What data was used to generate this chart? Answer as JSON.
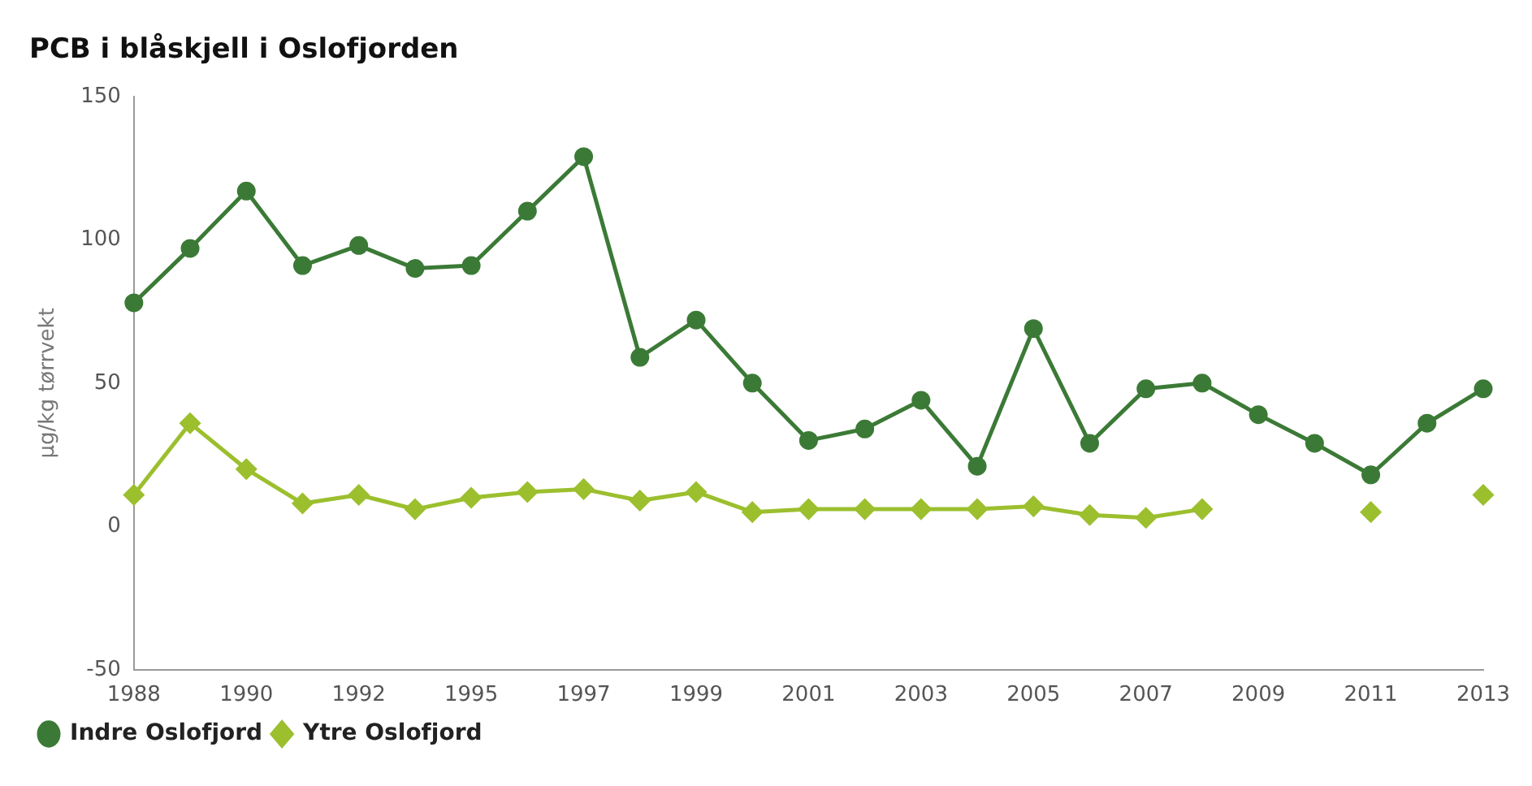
{
  "chart_data": {
    "type": "line",
    "title": "PCB i blåskjell i Oslofjorden",
    "ylabel": "µg/kg tørrvekt",
    "categories": [
      "1988",
      null,
      "1990",
      null,
      "1992",
      null,
      "1995",
      null,
      "1997",
      null,
      "1999",
      null,
      "2001",
      null,
      "2003",
      null,
      "2005",
      null,
      "2007",
      null,
      "2009",
      null,
      "2011",
      null,
      "2013"
    ],
    "series": [
      {
        "name": "Indre Oslofjord",
        "color": "#3b7a36",
        "marker": "circle",
        "values": [
          78,
          97,
          117,
          91,
          98,
          90,
          91,
          110,
          129,
          59,
          72,
          50,
          30,
          34,
          44,
          21,
          69,
          29,
          48,
          50,
          39,
          29,
          18,
          36,
          48
        ]
      },
      {
        "name": "Ytre Oslofjord",
        "color": "#9cbf2e",
        "marker": "diamond",
        "values": [
          11,
          36,
          20,
          8,
          11,
          6,
          10,
          12,
          13,
          9,
          12,
          5,
          6,
          6,
          6,
          6,
          7,
          4,
          3,
          6,
          null,
          null,
          5,
          null,
          11
        ]
      }
    ],
    "ylim": [
      -50,
      150
    ],
    "yticks": [
      -50,
      0,
      50,
      100,
      150
    ],
    "grid": false,
    "legend": "bottom",
    "line_style": "solid"
  }
}
